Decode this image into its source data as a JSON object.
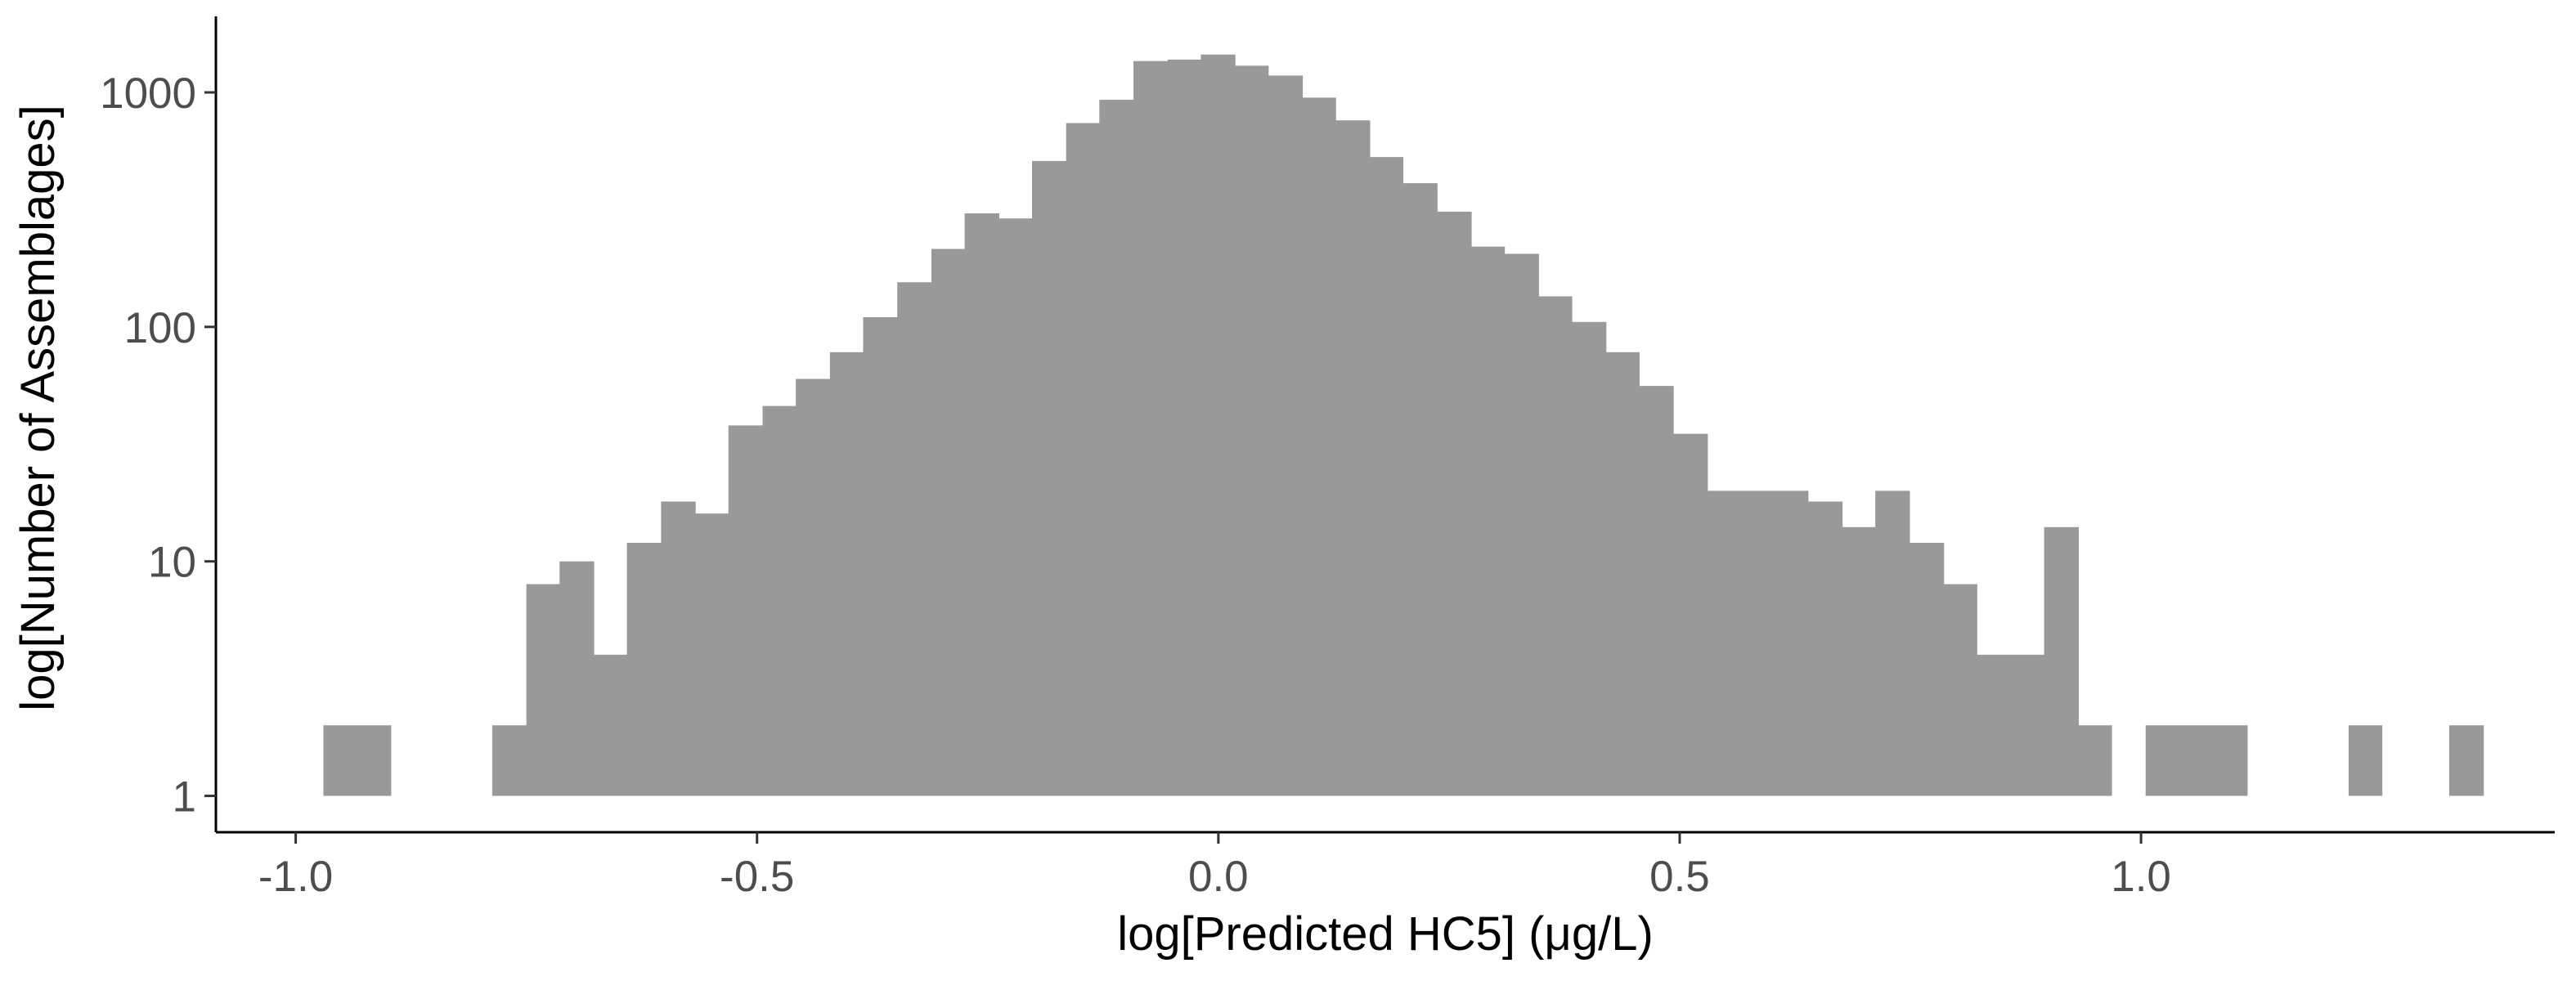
{
  "chart_data": {
    "type": "bar",
    "subtype": "histogram",
    "title": "",
    "xlabel": "log[Predicted HC5] (μg/L)",
    "ylabel": "log[Number of Assemblages]",
    "y_scale": "log10",
    "xlim": [
      -1.0865,
      1.4484
    ],
    "ylim": [
      0.7,
      2110
    ],
    "x_ticks": [
      -1.0,
      -0.5,
      0.0,
      0.5,
      1.0
    ],
    "x_tick_labels": [
      "-1.0",
      "-0.5",
      "0.0",
      "0.5",
      "1.0"
    ],
    "y_ticks": [
      1,
      10,
      100,
      1000
    ],
    "y_tick_labels": [
      "1",
      "10",
      "100",
      "1000"
    ],
    "grid": false,
    "legend": "none",
    "colors": {
      "bar": "#999999",
      "axis": "#000000",
      "tick_text": "#4d4d4d"
    },
    "bins": [
      {
        "x0": -0.97,
        "x1": -0.897,
        "count": 2
      },
      {
        "x0": -0.787,
        "x1": -0.75,
        "count": 2
      },
      {
        "x0": -0.75,
        "x1": -0.714,
        "count": 8
      },
      {
        "x0": -0.714,
        "x1": -0.677,
        "count": 10
      },
      {
        "x0": -0.677,
        "x1": -0.641,
        "count": 4
      },
      {
        "x0": -0.641,
        "x1": -0.604,
        "count": 12
      },
      {
        "x0": -0.604,
        "x1": -0.567,
        "count": 18
      },
      {
        "x0": -0.567,
        "x1": -0.531,
        "count": 16
      },
      {
        "x0": -0.531,
        "x1": -0.494,
        "count": 38
      },
      {
        "x0": -0.494,
        "x1": -0.458,
        "count": 46
      },
      {
        "x0": -0.458,
        "x1": -0.421,
        "count": 60
      },
      {
        "x0": -0.421,
        "x1": -0.385,
        "count": 78
      },
      {
        "x0": -0.385,
        "x1": -0.348,
        "count": 110
      },
      {
        "x0": -0.348,
        "x1": -0.311,
        "count": 155
      },
      {
        "x0": -0.311,
        "x1": -0.275,
        "count": 215
      },
      {
        "x0": -0.275,
        "x1": -0.238,
        "count": 305
      },
      {
        "x0": -0.238,
        "x1": -0.202,
        "count": 290
      },
      {
        "x0": -0.202,
        "x1": -0.165,
        "count": 510
      },
      {
        "x0": -0.165,
        "x1": -0.129,
        "count": 740
      },
      {
        "x0": -0.129,
        "x1": -0.092,
        "count": 930
      },
      {
        "x0": -0.092,
        "x1": -0.055,
        "count": 1360
      },
      {
        "x0": -0.055,
        "x1": -0.019,
        "count": 1380
      },
      {
        "x0": -0.019,
        "x1": 0.018,
        "count": 1450
      },
      {
        "x0": 0.018,
        "x1": 0.054,
        "count": 1300
      },
      {
        "x0": 0.054,
        "x1": 0.091,
        "count": 1180
      },
      {
        "x0": 0.091,
        "x1": 0.127,
        "count": 950
      },
      {
        "x0": 0.127,
        "x1": 0.164,
        "count": 760
      },
      {
        "x0": 0.164,
        "x1": 0.2,
        "count": 530
      },
      {
        "x0": 0.2,
        "x1": 0.237,
        "count": 410
      },
      {
        "x0": 0.237,
        "x1": 0.274,
        "count": 310
      },
      {
        "x0": 0.274,
        "x1": 0.31,
        "count": 220
      },
      {
        "x0": 0.31,
        "x1": 0.347,
        "count": 205
      },
      {
        "x0": 0.347,
        "x1": 0.383,
        "count": 135
      },
      {
        "x0": 0.383,
        "x1": 0.42,
        "count": 105
      },
      {
        "x0": 0.42,
        "x1": 0.456,
        "count": 78
      },
      {
        "x0": 0.456,
        "x1": 0.493,
        "count": 56
      },
      {
        "x0": 0.493,
        "x1": 0.53,
        "count": 35
      },
      {
        "x0": 0.53,
        "x1": 0.566,
        "count": 20
      },
      {
        "x0": 0.566,
        "x1": 0.603,
        "count": 20
      },
      {
        "x0": 0.603,
        "x1": 0.639,
        "count": 20
      },
      {
        "x0": 0.639,
        "x1": 0.676,
        "count": 18
      },
      {
        "x0": 0.676,
        "x1": 0.712,
        "count": 14
      },
      {
        "x0": 0.712,
        "x1": 0.749,
        "count": 20
      },
      {
        "x0": 0.749,
        "x1": 0.786,
        "count": 12
      },
      {
        "x0": 0.786,
        "x1": 0.822,
        "count": 8
      },
      {
        "x0": 0.822,
        "x1": 0.859,
        "count": 4
      },
      {
        "x0": 0.859,
        "x1": 0.895,
        "count": 4
      },
      {
        "x0": 0.895,
        "x1": 0.932,
        "count": 14
      },
      {
        "x0": 0.932,
        "x1": 0.968,
        "count": 2
      },
      {
        "x0": 1.005,
        "x1": 1.115,
        "count": 2
      },
      {
        "x0": 1.225,
        "x1": 1.261,
        "count": 2
      },
      {
        "x0": 1.334,
        "x1": 1.371,
        "count": 2
      }
    ]
  }
}
